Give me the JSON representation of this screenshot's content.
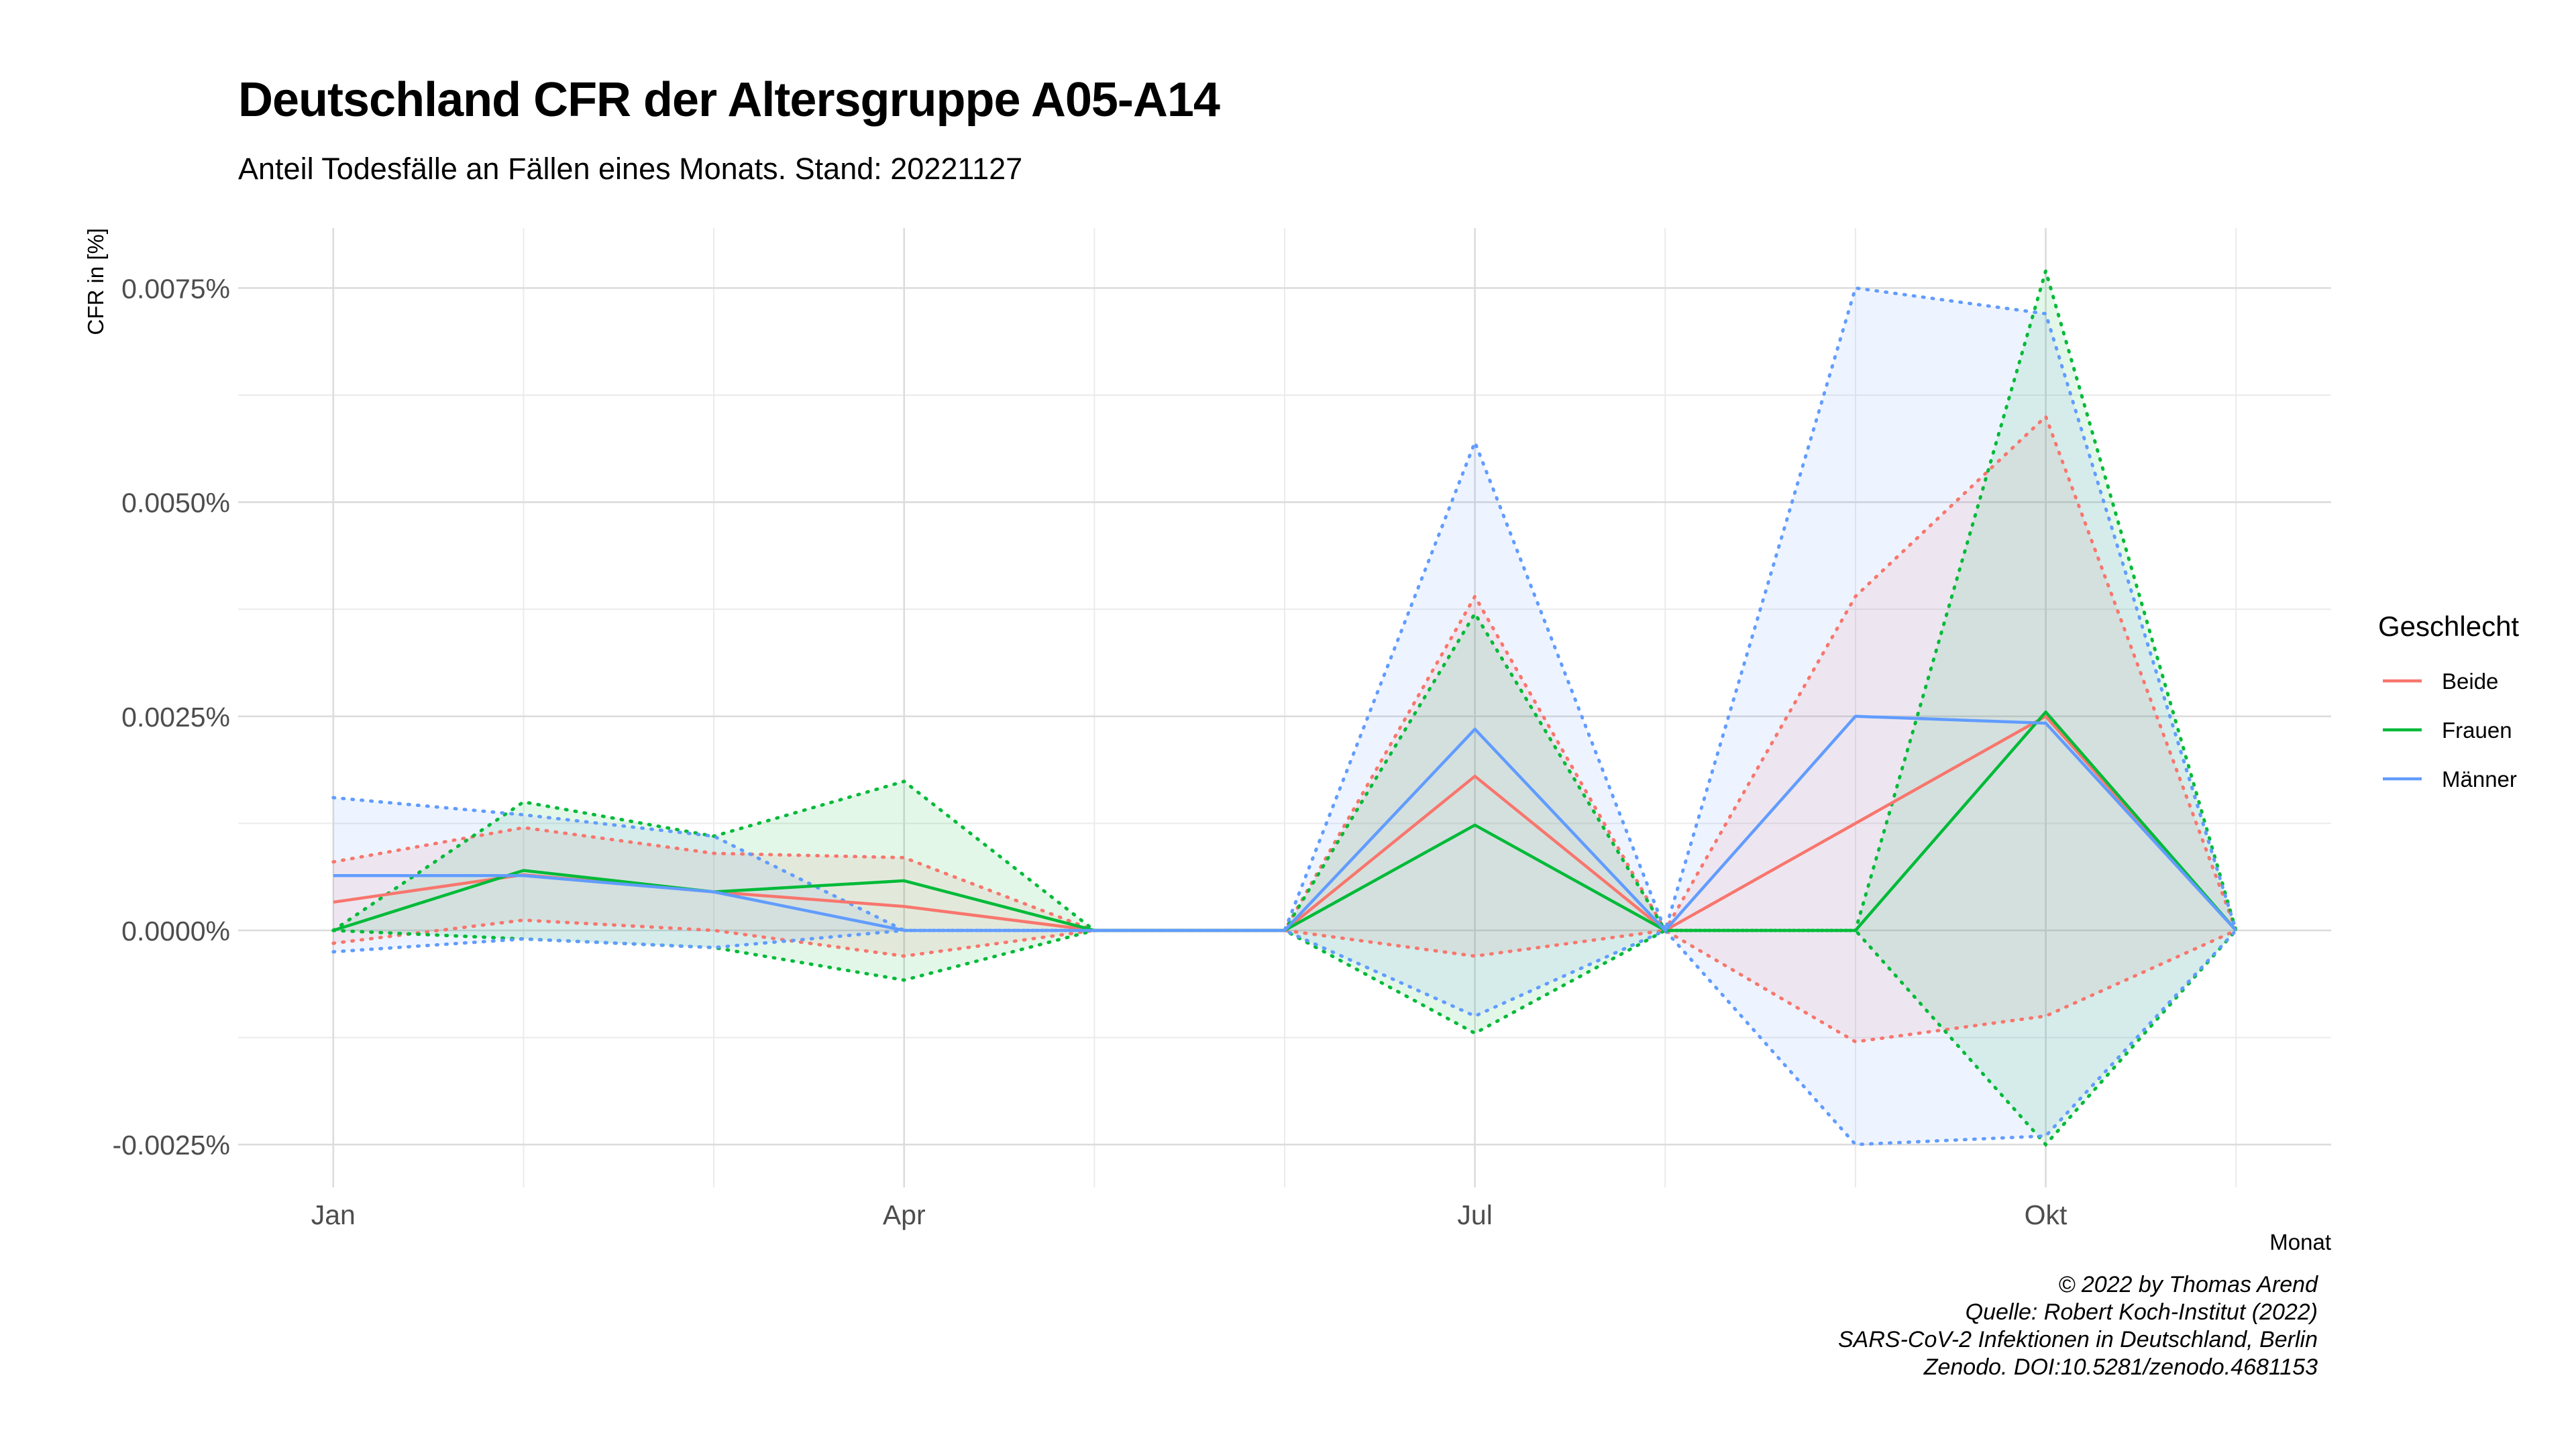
{
  "title": "Deutschland CFR der Altersgruppe A05-A14",
  "subtitle": "Anteil Todesfälle an Fällen eines Monats. Stand: 20221127",
  "caption": [
    "© 2022 by Thomas Arend",
    "Quelle: Robert Koch-Institut (2022)",
    "SARS-CoV-2 Infektionen in Deutschland, Berlin",
    "Zenodo. DOI:10.5281/zenodo.4681153"
  ],
  "chart_data": {
    "type": "line",
    "title": "Deutschland CFR der Altersgruppe A05-A14",
    "subtitle": "Anteil Todesfälle an Fällen eines Monats. Stand: 20221127",
    "xlabel": "Monat",
    "ylabel": "CFR in [%]",
    "x": [
      1,
      2,
      3,
      4,
      5,
      6,
      7,
      8,
      9,
      10,
      11
    ],
    "x_ticks": [
      1,
      4,
      7,
      10
    ],
    "x_tick_labels": [
      "Jan",
      "Apr",
      "Jul",
      "Okt"
    ],
    "y_ticks": [
      -0.0025,
      0,
      0.0025,
      0.005,
      0.0075
    ],
    "y_tick_labels": [
      "-0.0025%",
      "0.0000%",
      "0.0025%",
      "0.0050%",
      "0.0075%"
    ],
    "xlim": [
      0.5,
      11.5
    ],
    "ylim": [
      -0.003,
      0.0082
    ],
    "grid": true,
    "legend": {
      "title": "Geschlecht",
      "position": "right"
    },
    "series": [
      {
        "name": "Beide",
        "color": "#F8766D",
        "values": [
          0.00033,
          0.00065,
          0.00045,
          0.00028,
          0,
          0,
          0.0018,
          0,
          0.00125,
          0.0025,
          0
        ],
        "lower": [
          -0.00015,
          0.00012,
          0.0,
          -0.0003,
          0,
          0,
          -0.0003,
          0,
          -0.0013,
          -0.001,
          0
        ],
        "upper": [
          0.0008,
          0.0012,
          0.0009,
          0.00085,
          0,
          0,
          0.0039,
          0,
          0.0039,
          0.006,
          0
        ]
      },
      {
        "name": "Frauen",
        "color": "#00BA38",
        "values": [
          0,
          0.0007,
          0.00045,
          0.00058,
          0,
          0,
          0.00123,
          0,
          0,
          0.00255,
          0
        ],
        "lower": [
          0,
          -0.0001,
          -0.0002,
          -0.00058,
          0,
          0,
          -0.0012,
          0,
          0,
          -0.0025,
          0
        ],
        "upper": [
          0,
          0.0015,
          0.0011,
          0.00174,
          0,
          0,
          0.0037,
          0,
          0,
          0.0077,
          0
        ]
      },
      {
        "name": "Männer",
        "color": "#619CFF",
        "values": [
          0.00064,
          0.00064,
          0.00045,
          0,
          0,
          0,
          0.00235,
          0,
          0.0025,
          0.00242,
          0
        ],
        "lower": [
          -0.00025,
          -0.0001,
          -0.0002,
          0,
          0,
          0,
          -0.001,
          0,
          -0.0025,
          -0.0024,
          0
        ],
        "upper": [
          0.00155,
          0.00135,
          0.0011,
          0,
          0,
          0,
          0.0057,
          0,
          0.0075,
          0.0072,
          0
        ]
      }
    ]
  }
}
